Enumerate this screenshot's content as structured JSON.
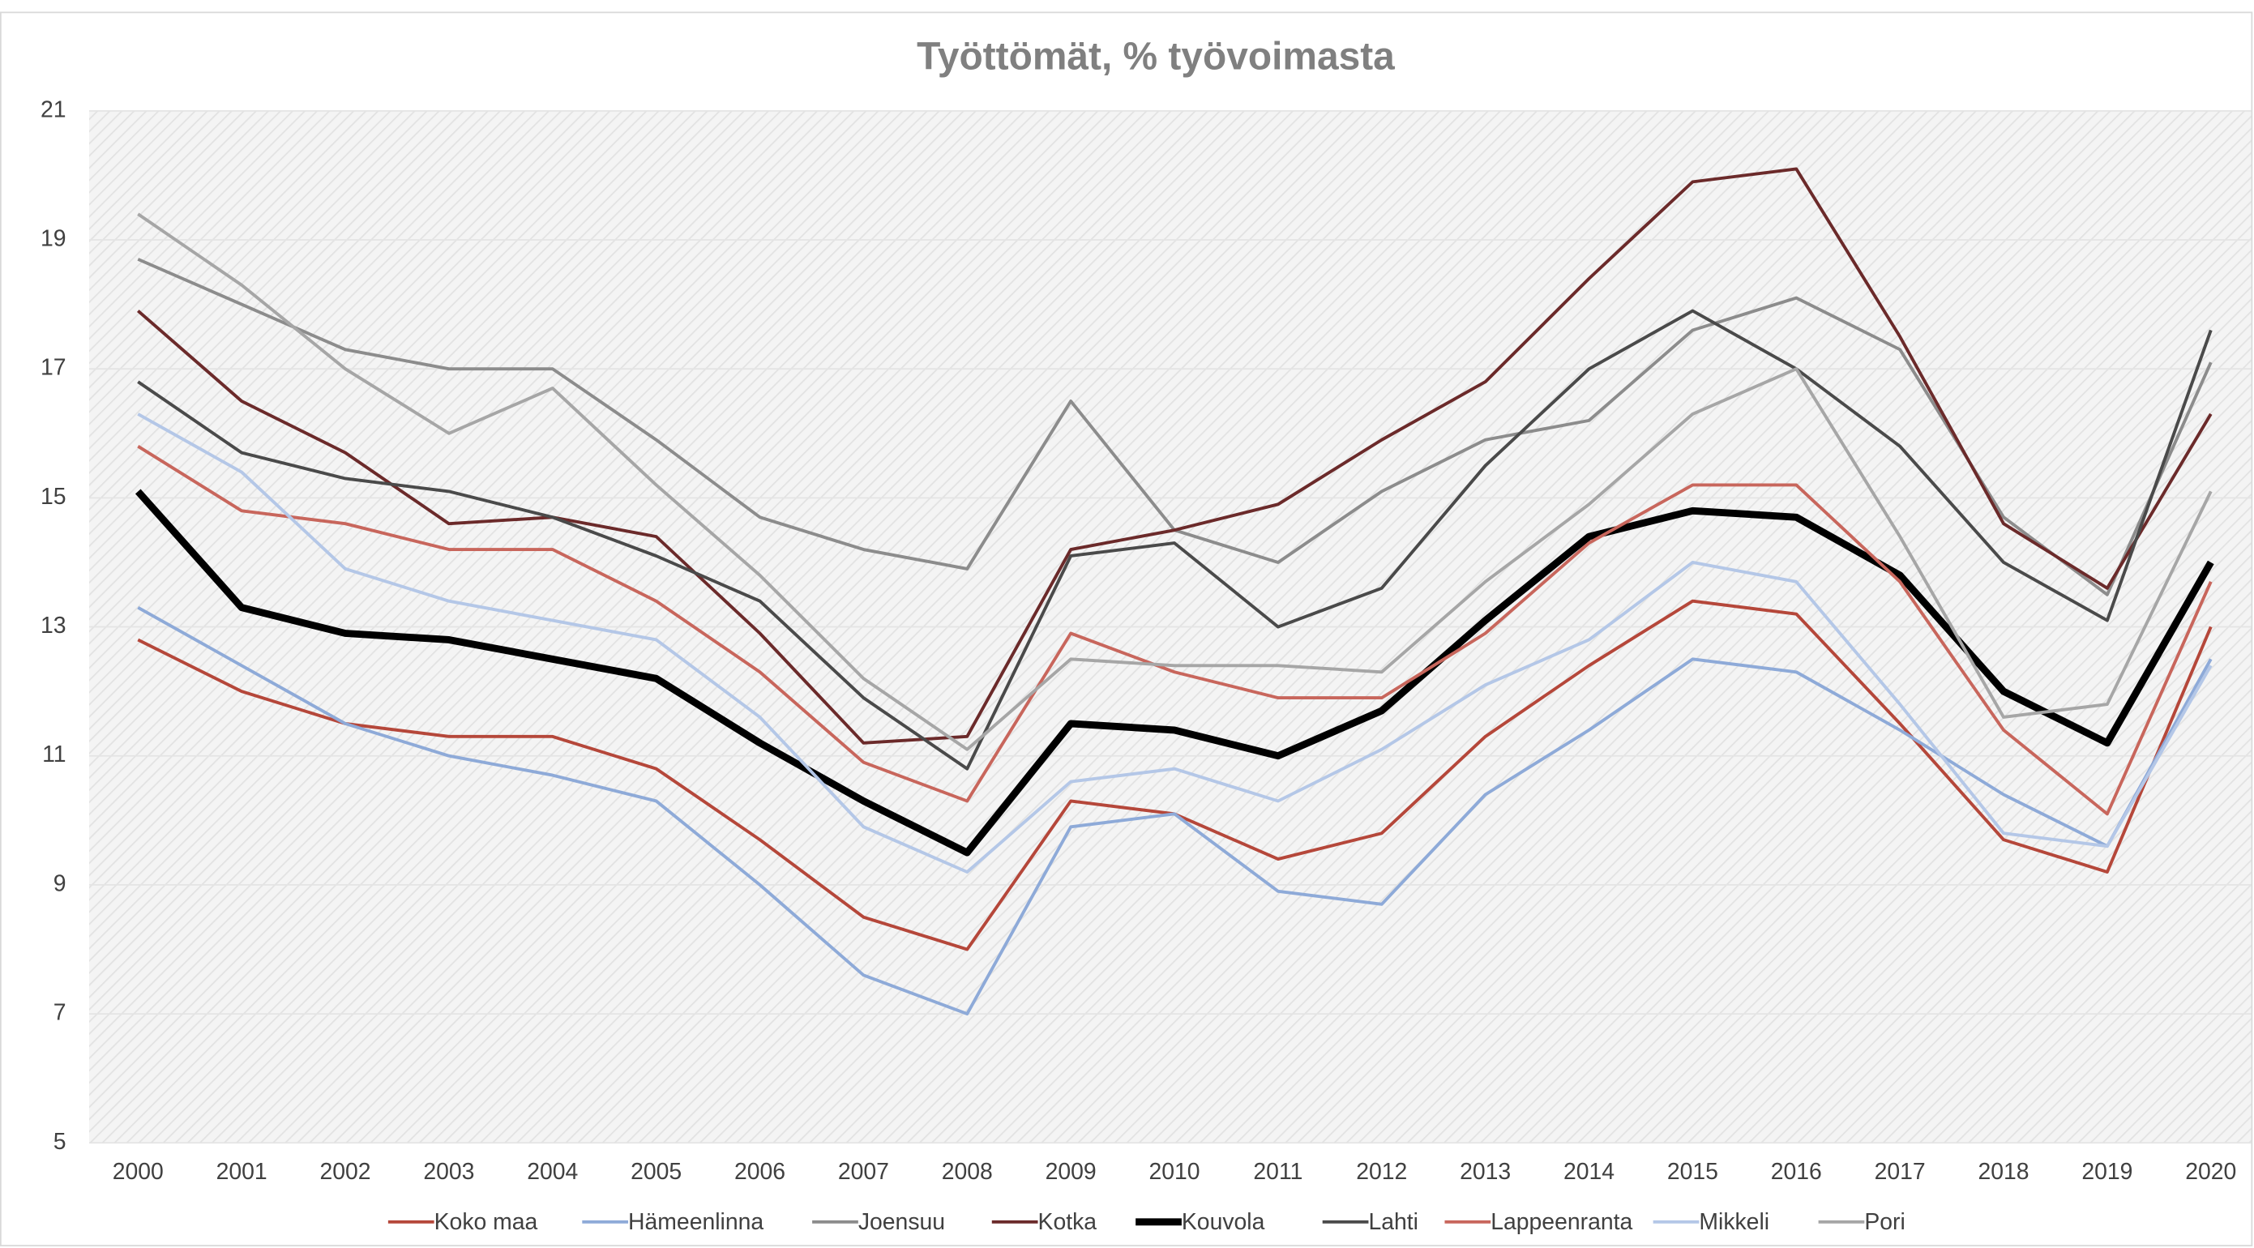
{
  "chart_data": {
    "type": "line",
    "title": "Työttömät, % työvoimasta",
    "x": [
      "2000",
      "2001",
      "2002",
      "2003",
      "2004",
      "2005",
      "2006",
      "2007",
      "2008",
      "2009",
      "2010",
      "2011",
      "2012",
      "2013",
      "2014",
      "2015",
      "2016",
      "2017",
      "2018",
      "2019",
      "2020"
    ],
    "ylim": [
      5,
      21
    ],
    "yticks": [
      5,
      7,
      9,
      11,
      13,
      15,
      17,
      19,
      21
    ],
    "grid": true,
    "legend": "bottom",
    "series": [
      {
        "name": "Koko maa",
        "color": "#b5473a",
        "values": [
          12.8,
          12.0,
          11.5,
          11.3,
          11.3,
          10.8,
          9.7,
          8.5,
          8.0,
          10.3,
          10.1,
          9.4,
          9.8,
          11.3,
          12.4,
          13.4,
          13.2,
          11.5,
          9.7,
          9.2,
          13.0
        ]
      },
      {
        "name": "Hämeenlinna",
        "color": "#8eaad8",
        "values": [
          13.3,
          12.4,
          11.5,
          11.0,
          10.7,
          10.3,
          9.0,
          7.6,
          7.0,
          9.9,
          10.1,
          8.9,
          8.7,
          10.4,
          11.4,
          12.5,
          12.3,
          11.4,
          10.4,
          9.6,
          12.5
        ]
      },
      {
        "name": "Joensuu",
        "color": "#8c8c8c",
        "values": [
          18.7,
          18.0,
          17.3,
          17.0,
          17.0,
          15.9,
          14.7,
          14.2,
          13.9,
          16.5,
          14.5,
          14.0,
          15.1,
          15.9,
          16.2,
          17.6,
          18.1,
          17.3,
          14.7,
          13.5,
          17.1
        ]
      },
      {
        "name": "Kotka",
        "color": "#6b2a2a",
        "values": [
          17.9,
          16.5,
          15.7,
          14.6,
          14.7,
          14.4,
          12.9,
          11.2,
          11.3,
          14.2,
          14.5,
          14.9,
          15.9,
          16.8,
          18.4,
          19.9,
          20.1,
          17.5,
          14.6,
          13.6,
          16.3
        ]
      },
      {
        "name": "Kouvola",
        "color": "#000000",
        "values": [
          15.1,
          13.3,
          12.9,
          12.8,
          12.5,
          12.2,
          11.2,
          10.3,
          9.5,
          11.5,
          11.4,
          11.0,
          11.7,
          13.1,
          14.4,
          14.8,
          14.7,
          13.8,
          12.0,
          11.2,
          14.0
        ]
      },
      {
        "name": "Lahti",
        "color": "#4a4a4a",
        "values": [
          16.8,
          15.7,
          15.3,
          15.1,
          14.7,
          14.1,
          13.4,
          11.9,
          10.8,
          14.1,
          14.3,
          13.0,
          13.6,
          15.5,
          17.0,
          17.9,
          17.0,
          15.8,
          14.0,
          13.1,
          17.6
        ]
      },
      {
        "name": "Lappeenranta",
        "color": "#c8665c",
        "values": [
          15.8,
          14.8,
          14.6,
          14.2,
          14.2,
          13.4,
          12.3,
          10.9,
          10.3,
          12.9,
          12.3,
          11.9,
          11.9,
          12.9,
          14.3,
          15.2,
          15.2,
          13.7,
          11.4,
          10.1,
          13.7
        ]
      },
      {
        "name": "Mikkeli",
        "color": "#b4c7e7",
        "values": [
          16.3,
          15.4,
          13.9,
          13.4,
          13.1,
          12.8,
          11.6,
          9.9,
          9.2,
          10.6,
          10.8,
          10.3,
          11.1,
          12.1,
          12.8,
          14.0,
          13.7,
          11.8,
          9.8,
          9.6,
          12.4
        ]
      },
      {
        "name": "Pori",
        "color": "#a6a6a6",
        "values": [
          19.4,
          18.3,
          17.0,
          16.0,
          16.7,
          15.2,
          13.8,
          12.2,
          11.1,
          12.5,
          12.4,
          12.4,
          12.3,
          13.7,
          14.9,
          16.3,
          17.0,
          14.4,
          11.6,
          11.8,
          15.1
        ]
      }
    ]
  }
}
